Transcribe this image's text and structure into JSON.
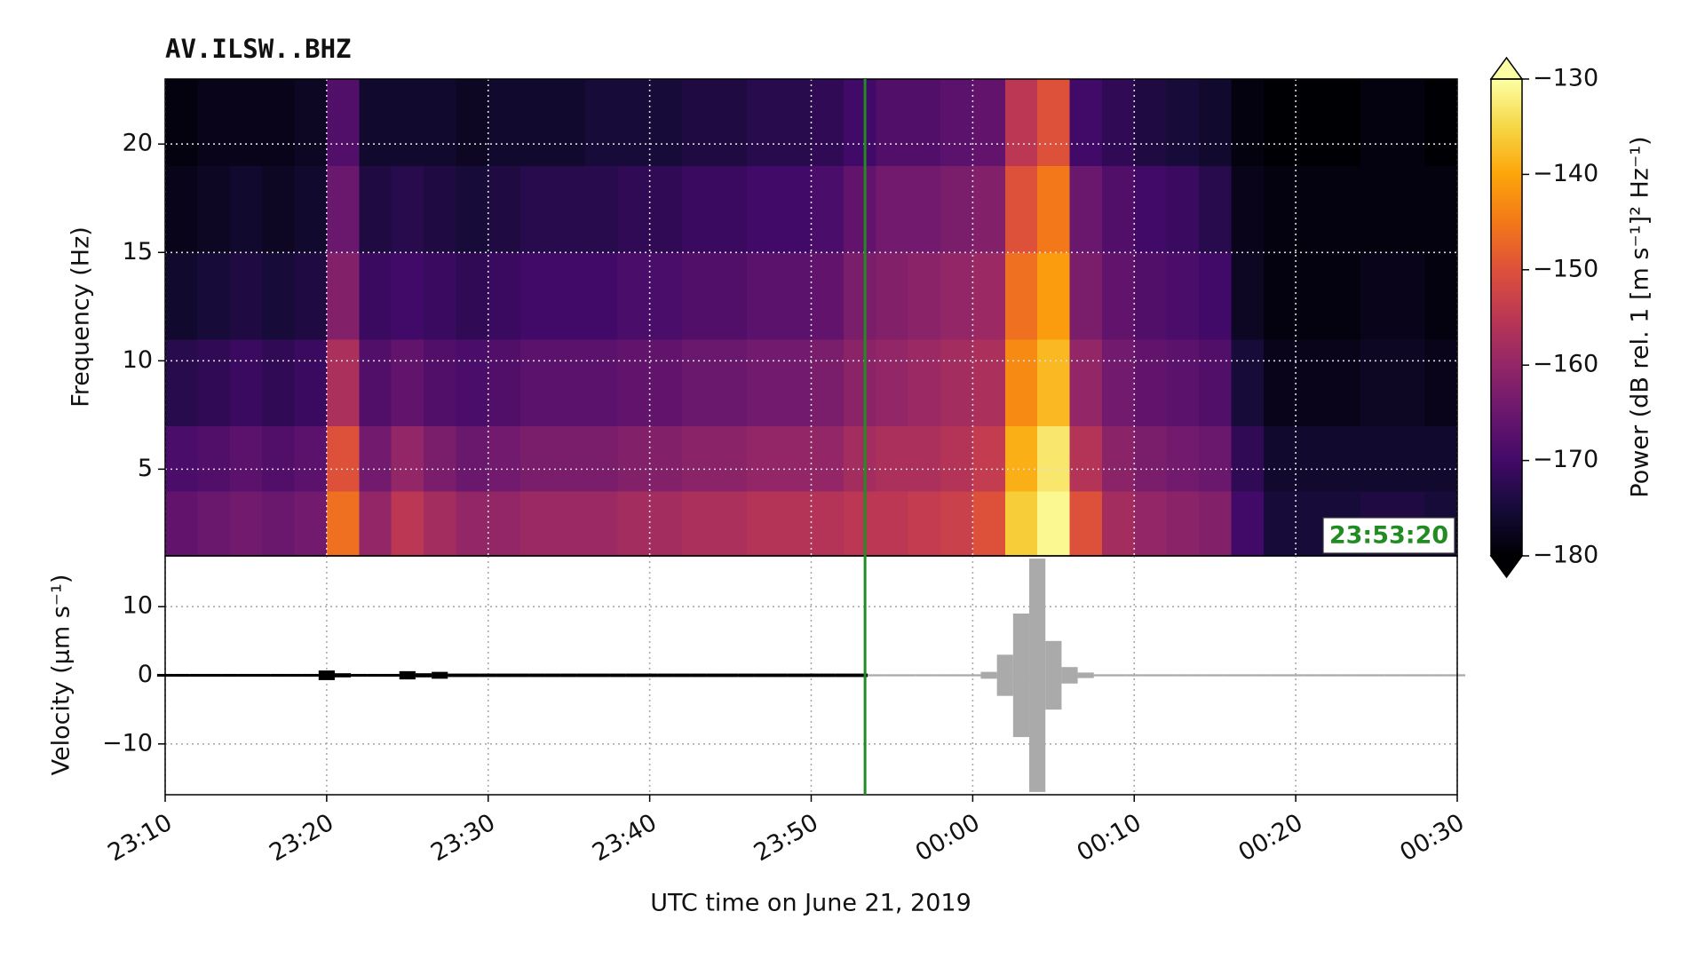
{
  "chart_data": [
    {
      "type": "heatmap",
      "title": "AV.ILSW..BHZ",
      "ylabel": "Frequency (Hz)",
      "colormap": "inferno",
      "grid": true,
      "xlim": [
        0,
        80
      ],
      "xticks": [
        0,
        10,
        20,
        30,
        40,
        50,
        60,
        70,
        80
      ],
      "ylim": [
        1,
        23
      ],
      "yticks": [
        5,
        10,
        15,
        20
      ],
      "x_edges": [
        0,
        2,
        4,
        6,
        8,
        10,
        12,
        14,
        16,
        18,
        20,
        22,
        24,
        26,
        28,
        30,
        32,
        34,
        36,
        38,
        40,
        42,
        44,
        46,
        48,
        50,
        52,
        54,
        56,
        58,
        60,
        62,
        64,
        66,
        68,
        70,
        72,
        74,
        76,
        78,
        80
      ],
      "y_edges": [
        1,
        4,
        7,
        11,
        15,
        19,
        23
      ],
      "values": [
        [
          -166,
          -169,
          -173,
          -176,
          -178,
          -179
        ],
        [
          -165,
          -168,
          -172,
          -175,
          -177,
          -178
        ],
        [
          -164,
          -167,
          -171,
          -174,
          -176,
          -178
        ],
        [
          -165,
          -168,
          -172,
          -175,
          -177,
          -178
        ],
        [
          -164,
          -167,
          -171,
          -174,
          -176,
          -177
        ],
        [
          -146,
          -150,
          -157,
          -162,
          -165,
          -168
        ],
        [
          -160,
          -164,
          -168,
          -171,
          -174,
          -176
        ],
        [
          -155,
          -160,
          -166,
          -170,
          -173,
          -176
        ],
        [
          -158,
          -163,
          -168,
          -171,
          -174,
          -176
        ],
        [
          -160,
          -165,
          -169,
          -172,
          -175,
          -177
        ],
        [
          -160,
          -164,
          -168,
          -171,
          -174,
          -176
        ],
        [
          -159,
          -163,
          -167,
          -170,
          -173,
          -176
        ],
        [
          -159,
          -163,
          -167,
          -170,
          -173,
          -176
        ],
        [
          -159,
          -163,
          -167,
          -170,
          -173,
          -175
        ],
        [
          -158,
          -162,
          -166,
          -169,
          -172,
          -175
        ],
        [
          -158,
          -162,
          -166,
          -169,
          -172,
          -175
        ],
        [
          -157,
          -161,
          -165,
          -168,
          -171,
          -174
        ],
        [
          -157,
          -161,
          -165,
          -168,
          -171,
          -174
        ],
        [
          -156,
          -160,
          -164,
          -167,
          -170,
          -173
        ],
        [
          -156,
          -160,
          -164,
          -167,
          -170,
          -173
        ],
        [
          -156,
          -160,
          -163,
          -166,
          -169,
          -172
        ],
        [
          -155,
          -158,
          -161,
          -163,
          -166,
          -170
        ],
        [
          -155,
          -157,
          -160,
          -162,
          -164,
          -168
        ],
        [
          -154,
          -157,
          -159,
          -161,
          -164,
          -168
        ],
        [
          -153,
          -156,
          -158,
          -160,
          -163,
          -167
        ],
        [
          -150,
          -154,
          -157,
          -159,
          -162,
          -166
        ],
        [
          -136,
          -139,
          -143,
          -146,
          -150,
          -155
        ],
        [
          -131,
          -133,
          -138,
          -141,
          -145,
          -150
        ],
        [
          -150,
          -156,
          -160,
          -163,
          -165,
          -170
        ],
        [
          -158,
          -161,
          -164,
          -166,
          -168,
          -172
        ],
        [
          -160,
          -163,
          -166,
          -168,
          -170,
          -174
        ],
        [
          -161,
          -164,
          -167,
          -169,
          -171,
          -175
        ],
        [
          -162,
          -165,
          -168,
          -170,
          -173,
          -176
        ],
        [
          -170,
          -172,
          -175,
          -177,
          -178,
          -179
        ],
        [
          -175,
          -176,
          -178,
          -179,
          -179,
          -180
        ],
        [
          -175,
          -176,
          -178,
          -179,
          -179,
          -180
        ],
        [
          -175,
          -176,
          -178,
          -179,
          -179,
          -180
        ],
        [
          -174,
          -176,
          -177,
          -178,
          -179,
          -179
        ],
        [
          -174,
          -176,
          -177,
          -178,
          -179,
          -179
        ],
        [
          -175,
          -176,
          -178,
          -179,
          -179,
          -180
        ]
      ],
      "colorbar": {
        "label": "Power (dB rel. 1 [m s⁻¹]² Hz⁻¹)",
        "lim": [
          -180,
          -130
        ],
        "extend": "both",
        "ticks": [
          {
            "value": -130,
            "label": "−130"
          },
          {
            "value": -140,
            "label": "−140"
          },
          {
            "value": -150,
            "label": "−150"
          },
          {
            "value": -160,
            "label": "−160"
          },
          {
            "value": -170,
            "label": "−170"
          },
          {
            "value": -180,
            "label": "−180"
          }
        ]
      },
      "cursor": {
        "value": 43.333,
        "label": "23:53:20",
        "color": "#228b22"
      }
    },
    {
      "type": "area",
      "ylabel": "Velocity (μm s⁻¹)",
      "xlabel": "UTC time on June 21, 2019",
      "grid": true,
      "color": "#000000",
      "after_cursor_color": "#aaaaaa",
      "xlim": [
        0,
        80
      ],
      "xticks": [
        {
          "value": 0,
          "label": "23:10"
        },
        {
          "value": 10,
          "label": "23:20"
        },
        {
          "value": 20,
          "label": "23:30"
        },
        {
          "value": 30,
          "label": "23:40"
        },
        {
          "value": 40,
          "label": "23:50"
        },
        {
          "value": 50,
          "label": "00:00"
        },
        {
          "value": 60,
          "label": "00:10"
        },
        {
          "value": 70,
          "label": "00:20"
        },
        {
          "value": 80,
          "label": "00:30"
        }
      ],
      "ylim": [
        -17.4,
        17.4
      ],
      "yticks": [
        {
          "value": -10,
          "label": "−10"
        },
        0,
        10
      ],
      "x": [
        0,
        1,
        2,
        3,
        4,
        5,
        6,
        7,
        8,
        9,
        10,
        11,
        12,
        13,
        14,
        15,
        16,
        17,
        18,
        19,
        20,
        21,
        22,
        23,
        24,
        25,
        26,
        27,
        28,
        29,
        30,
        31,
        32,
        33,
        34,
        35,
        36,
        37,
        38,
        39,
        40,
        41,
        42,
        43,
        44,
        45,
        46,
        47,
        48,
        49,
        50,
        51,
        52,
        53,
        54,
        55,
        56,
        57,
        58,
        59,
        60,
        61,
        62,
        63,
        64,
        65,
        66,
        67,
        68,
        69,
        70,
        71,
        72,
        73,
        74,
        75,
        76,
        77,
        78,
        79,
        80
      ],
      "values": [
        0.2,
        0.2,
        0.2,
        0.2,
        0.2,
        0.2,
        0.2,
        0.2,
        0.2,
        0.2,
        0.7,
        0.3,
        0.2,
        0.2,
        0.2,
        0.6,
        0.3,
        0.5,
        0.25,
        0.25,
        0.25,
        0.25,
        0.25,
        0.25,
        0.25,
        0.25,
        0.25,
        0.25,
        0.25,
        0.25,
        0.25,
        0.25,
        0.25,
        0.25,
        0.25,
        0.25,
        0.25,
        0.25,
        0.25,
        0.25,
        0.25,
        0.25,
        0.25,
        0.25,
        0.15,
        0.15,
        0.15,
        0.15,
        0.15,
        0.15,
        0.15,
        0.5,
        3,
        9,
        17,
        5,
        1.2,
        0.4,
        0.15,
        0.15,
        0.15,
        0.15,
        0.15,
        0.15,
        0.15,
        0.15,
        0.15,
        0.15,
        0.15,
        0.15,
        0.15,
        0.15,
        0.15,
        0.15,
        0.15,
        0.15,
        0.15,
        0.15,
        0.15,
        0.15,
        0.15
      ]
    }
  ]
}
